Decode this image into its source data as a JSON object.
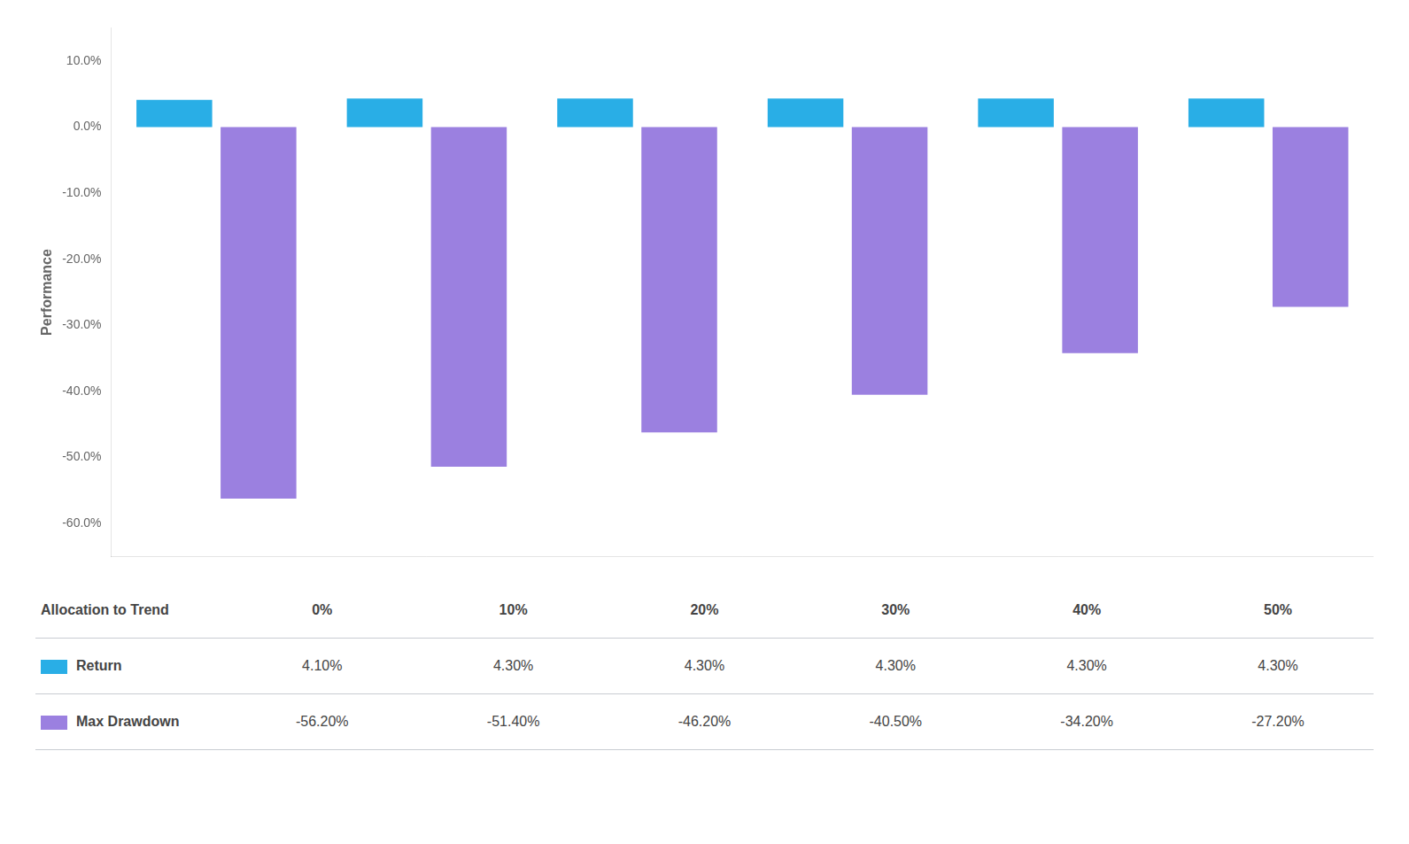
{
  "chart_data": {
    "type": "bar",
    "xlabel": "Allocation to Trend",
    "ylabel": "Performance",
    "categories": [
      "0%",
      "10%",
      "20%",
      "30%",
      "40%",
      "50%"
    ],
    "series": [
      {
        "name": "Return",
        "color": "#29aee6",
        "values": [
          4.1,
          4.3,
          4.3,
          4.3,
          4.3,
          4.3
        ],
        "value_labels": [
          "4.10%",
          "4.30%",
          "4.30%",
          "4.30%",
          "4.30%",
          "4.30%"
        ]
      },
      {
        "name": "Max Drawdown",
        "color": "#9b80e0",
        "values": [
          -56.2,
          -51.4,
          -46.2,
          -40.5,
          -34.2,
          -27.2
        ],
        "value_labels": [
          "-56.20%",
          "-51.40%",
          "-46.20%",
          "-40.50%",
          "-34.20%",
          "-27.20%"
        ]
      }
    ],
    "ylim": [
      -65,
      15
    ],
    "yticks": [
      {
        "value": 10.0,
        "label": "10.0%"
      },
      {
        "value": 0.0,
        "label": "0.0%"
      },
      {
        "value": -10.0,
        "label": "-10.0%"
      },
      {
        "value": -20.0,
        "label": "-20.0%"
      },
      {
        "value": -30.0,
        "label": "-30.0%"
      },
      {
        "value": -40.0,
        "label": "-40.0%"
      },
      {
        "value": -50.0,
        "label": "-50.0%"
      },
      {
        "value": -60.0,
        "label": "-60.0%"
      }
    ],
    "grid": false,
    "tick_labels": "y",
    "data_labels": true
  }
}
